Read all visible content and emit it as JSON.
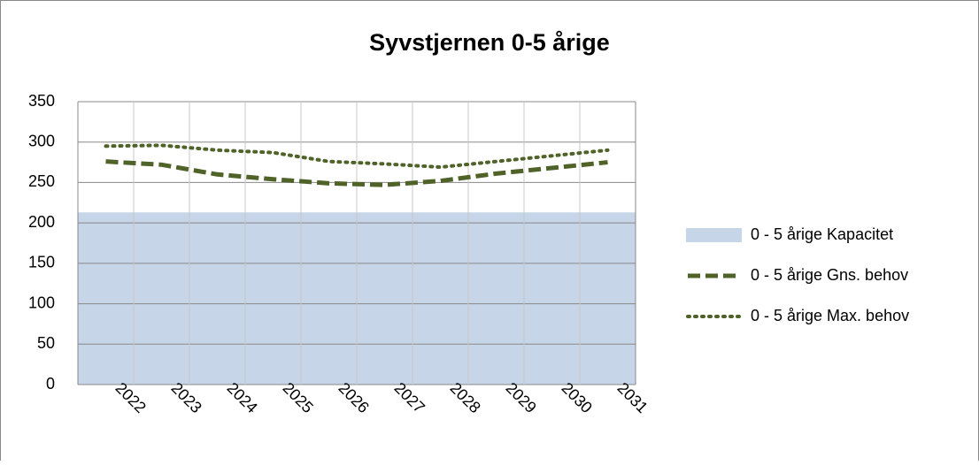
{
  "chart_data": {
    "type": "line",
    "title": "Syvstjernen 0-5 årige",
    "categories": [
      "2022",
      "2023",
      "2024",
      "2025",
      "2026",
      "2027",
      "2028",
      "2029",
      "2030",
      "2031"
    ],
    "ylim": [
      0,
      350
    ],
    "yticks": [
      0,
      50,
      100,
      150,
      200,
      250,
      300,
      350
    ],
    "grid": true,
    "legend": "right",
    "series": [
      {
        "name": "0 - 5 årige Kapacitet",
        "style": "area",
        "color": "#c6d5e8",
        "values": [
          213,
          213,
          213,
          213,
          213,
          213,
          213,
          213,
          213,
          213
        ]
      },
      {
        "name": "0 - 5 årige Gns. behov",
        "style": "dashed",
        "color": "#4f6228",
        "values": [
          276,
          272,
          260,
          254,
          249,
          247,
          252,
          261,
          268,
          275
        ]
      },
      {
        "name": "0 - 5 årige Max. behov",
        "style": "dotted",
        "color": "#4f6228",
        "values": [
          295,
          296,
          290,
          287,
          276,
          273,
          269,
          276,
          283,
          290
        ]
      }
    ]
  }
}
